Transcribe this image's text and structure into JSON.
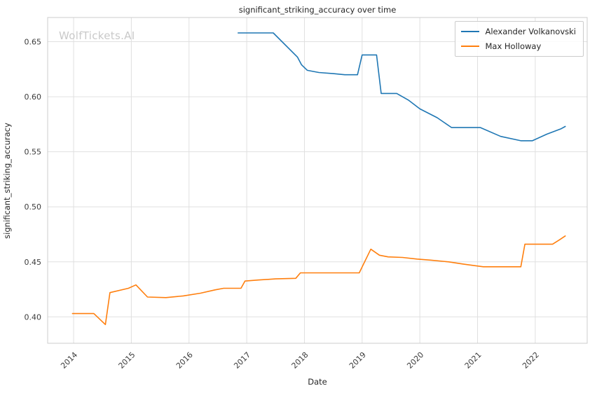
{
  "watermark": "WolfTickets.AI",
  "chart_data": {
    "type": "line",
    "title": "significant_striking_accuracy over time",
    "xlabel": "Date",
    "ylabel": "significant_striking_accuracy",
    "xlim": [
      2013.55,
      2022.9
    ],
    "ylim": [
      0.376,
      0.672
    ],
    "grid": true,
    "legend_position": "upper right",
    "background": "#ffffff",
    "grid_color": "#e0e0e0",
    "frame_color": "#cccccc",
    "tick_color": "#3b3b3b",
    "xticks": [
      {
        "value": 2014,
        "label": "2014"
      },
      {
        "value": 2015,
        "label": "2015"
      },
      {
        "value": 2016,
        "label": "2016"
      },
      {
        "value": 2017,
        "label": "2017"
      },
      {
        "value": 2018,
        "label": "2018"
      },
      {
        "value": 2019,
        "label": "2019"
      },
      {
        "value": 2020,
        "label": "2020"
      },
      {
        "value": 2021,
        "label": "2021"
      },
      {
        "value": 2022,
        "label": "2022"
      }
    ],
    "yticks": [
      {
        "value": 0.4,
        "label": "0.40"
      },
      {
        "value": 0.45,
        "label": "0.45"
      },
      {
        "value": 0.5,
        "label": "0.50"
      },
      {
        "value": 0.55,
        "label": "0.55"
      },
      {
        "value": 0.6,
        "label": "0.60"
      },
      {
        "value": 0.65,
        "label": "0.65"
      }
    ],
    "series": [
      {
        "name": "Alexander Volkanovski",
        "color": "#1f77b4",
        "points": [
          [
            2016.85,
            0.658
          ],
          [
            2017.46,
            0.658
          ],
          [
            2017.88,
            0.636
          ],
          [
            2017.95,
            0.629
          ],
          [
            2018.05,
            0.624
          ],
          [
            2018.25,
            0.622
          ],
          [
            2018.5,
            0.621
          ],
          [
            2018.7,
            0.62
          ],
          [
            2018.92,
            0.62
          ],
          [
            2019.0,
            0.638
          ],
          [
            2019.25,
            0.638
          ],
          [
            2019.33,
            0.603
          ],
          [
            2019.6,
            0.603
          ],
          [
            2019.8,
            0.597
          ],
          [
            2020.0,
            0.589
          ],
          [
            2020.3,
            0.581
          ],
          [
            2020.55,
            0.572
          ],
          [
            2021.05,
            0.572
          ],
          [
            2021.4,
            0.564
          ],
          [
            2021.75,
            0.56
          ],
          [
            2021.95,
            0.56
          ],
          [
            2022.2,
            0.566
          ],
          [
            2022.45,
            0.571
          ],
          [
            2022.52,
            0.573
          ]
        ]
      },
      {
        "name": "Max Holloway",
        "color": "#ff7f0e",
        "points": [
          [
            2013.98,
            0.403
          ],
          [
            2014.35,
            0.403
          ],
          [
            2014.55,
            0.393
          ],
          [
            2014.63,
            0.422
          ],
          [
            2014.95,
            0.426
          ],
          [
            2015.08,
            0.429
          ],
          [
            2015.28,
            0.418
          ],
          [
            2015.6,
            0.4175
          ],
          [
            2015.9,
            0.419
          ],
          [
            2016.2,
            0.4215
          ],
          [
            2016.45,
            0.4245
          ],
          [
            2016.6,
            0.426
          ],
          [
            2016.9,
            0.426
          ],
          [
            2016.97,
            0.4325
          ],
          [
            2017.2,
            0.4335
          ],
          [
            2017.5,
            0.4345
          ],
          [
            2017.85,
            0.435
          ],
          [
            2017.93,
            0.44
          ],
          [
            2018.2,
            0.44
          ],
          [
            2018.6,
            0.44
          ],
          [
            2018.95,
            0.44
          ],
          [
            2019.15,
            0.4615
          ],
          [
            2019.3,
            0.456
          ],
          [
            2019.45,
            0.4545
          ],
          [
            2019.7,
            0.454
          ],
          [
            2019.95,
            0.4525
          ],
          [
            2020.2,
            0.4515
          ],
          [
            2020.5,
            0.45
          ],
          [
            2020.75,
            0.448
          ],
          [
            2020.95,
            0.4465
          ],
          [
            2021.1,
            0.4455
          ],
          [
            2021.45,
            0.4455
          ],
          [
            2021.75,
            0.4455
          ],
          [
            2021.82,
            0.466
          ],
          [
            2022.1,
            0.466
          ],
          [
            2022.3,
            0.466
          ],
          [
            2022.42,
            0.47
          ],
          [
            2022.52,
            0.4735
          ]
        ]
      }
    ]
  }
}
